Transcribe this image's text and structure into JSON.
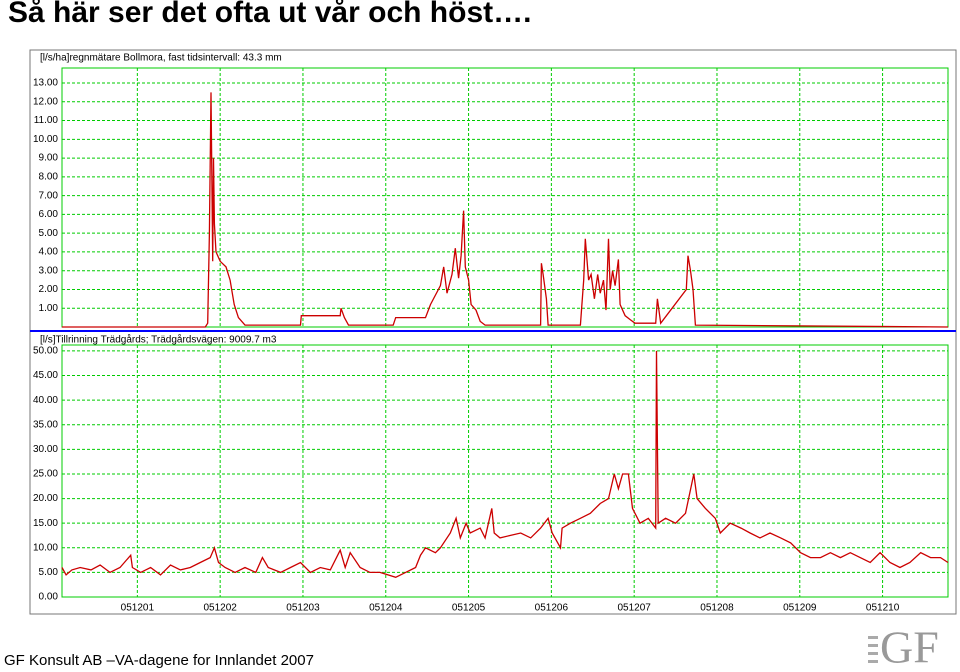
{
  "title": "Så här ser det ofta ut vår och höst….",
  "footer": "GF Konsult AB –VA-dagene for Innlandet 2007",
  "logo": "GF",
  "chart_data": [
    {
      "type": "line",
      "title": "[l/s/ha]regnmätare Bollmora, fast tidsintervall: 43.3 mm",
      "x": [
        -0.91,
        0.82,
        0.85,
        0.87,
        0.89,
        0.91,
        0.92,
        0.93,
        0.95,
        1.0,
        1.07,
        1.12,
        1.17,
        1.22,
        1.3,
        1.97,
        1.98,
        2.45,
        2.46,
        2.5,
        2.55,
        3.09,
        3.12,
        3.48,
        3.54,
        3.66,
        3.7,
        3.74,
        3.8,
        3.84,
        3.88,
        3.91,
        3.94,
        3.96,
        4.0,
        4.03,
        4.09,
        4.14,
        4.2,
        4.87,
        4.88,
        4.9,
        4.94,
        4.96,
        5.35,
        5.39,
        5.41,
        5.45,
        5.48,
        5.52,
        5.56,
        5.59,
        5.63,
        5.66,
        5.69,
        5.71,
        5.74,
        5.77,
        5.81,
        5.83,
        5.89,
        5.95,
        6.01,
        6.26,
        6.28,
        6.32,
        6.63,
        6.65,
        6.68,
        6.71,
        6.74,
        9.79
      ],
      "series": [
        {
          "color": "#cc0000",
          "values": [
            0,
            0,
            0.2,
            5,
            12.5,
            3.5,
            9,
            5.5,
            4,
            3.5,
            3.2,
            2.5,
            1.2,
            0.5,
            0.1,
            0.1,
            0.6,
            0.6,
            1.0,
            0.5,
            0.1,
            0.1,
            0.5,
            0.5,
            1.2,
            2.2,
            3.2,
            1.8,
            2.8,
            4.2,
            2.6,
            3.8,
            6.2,
            3.2,
            2.5,
            1.2,
            0.9,
            0.3,
            0.1,
            0.1,
            3.4,
            2.8,
            1.5,
            0.1,
            0.1,
            2.5,
            4.7,
            2.5,
            2.8,
            1.5,
            2.8,
            1.8,
            2.5,
            0.9,
            4.7,
            2.0,
            3.0,
            2.2,
            3.6,
            1.2,
            0.6,
            0.4,
            0.2,
            0.2,
            1.5,
            0.2,
            2.0,
            3.8,
            3.0,
            2.0,
            0.1,
            0
          ]
        }
      ],
      "xlim": [
        -0.91,
        9.79
      ],
      "ylim": [
        0,
        13.8
      ],
      "yticks": [
        {
          "value": 1,
          "label": "1.00"
        },
        {
          "value": 2,
          "label": "2.00"
        },
        {
          "value": 3,
          "label": "3.00"
        },
        {
          "value": 4,
          "label": "4.00"
        },
        {
          "value": 5,
          "label": "5.00"
        },
        {
          "value": 6,
          "label": "6.00"
        },
        {
          "value": 7,
          "label": "7.00"
        },
        {
          "value": 8,
          "label": "8.00"
        },
        {
          "value": 9,
          "label": "9.00"
        },
        {
          "value": 10,
          "label": "10.00"
        },
        {
          "value": 11,
          "label": "11.00"
        },
        {
          "value": 12,
          "label": "12.00"
        },
        {
          "value": 13,
          "label": "13.00"
        }
      ],
      "grid": true
    },
    {
      "type": "line",
      "title": "[l/s]Tillrinning Trädgårds; Trädgårdsvägen: 9009.7 m3",
      "x": [
        -0.91,
        -0.86,
        -0.79,
        -0.69,
        -0.56,
        -0.45,
        -0.33,
        -0.21,
        -0.08,
        -0.06,
        0.04,
        0.16,
        0.28,
        0.4,
        0.52,
        0.64,
        0.76,
        0.88,
        0.93,
        0.98,
        1.06,
        1.18,
        1.3,
        1.43,
        1.51,
        1.58,
        1.73,
        1.85,
        1.97,
        2.09,
        2.21,
        2.33,
        2.45,
        2.51,
        2.57,
        2.69,
        2.81,
        2.93,
        3.12,
        3.24,
        3.36,
        3.42,
        3.48,
        3.6,
        3.66,
        3.78,
        3.85,
        3.9,
        3.97,
        4.02,
        4.14,
        4.2,
        4.28,
        4.31,
        4.38,
        4.5,
        4.63,
        4.75,
        4.87,
        4.96,
        5.01,
        5.11,
        5.13,
        5.23,
        5.35,
        5.47,
        5.59,
        5.69,
        5.76,
        5.81,
        5.86,
        5.93,
        5.98,
        6.07,
        6.17,
        6.26,
        6.27,
        6.29,
        6.38,
        6.5,
        6.62,
        6.72,
        6.76,
        6.86,
        6.98,
        7.04,
        7.16,
        7.29,
        7.4,
        7.52,
        7.64,
        7.77,
        7.89,
        8.01,
        8.13,
        8.25,
        8.37,
        8.49,
        8.61,
        8.73,
        8.85,
        8.97,
        9.09,
        9.21,
        9.33,
        9.46,
        9.58,
        9.7,
        9.79
      ],
      "series": [
        {
          "color": "#cc0000",
          "values": [
            6,
            4.5,
            5.5,
            6,
            5.5,
            6.5,
            5,
            6,
            8.5,
            6,
            5,
            6,
            4.5,
            6.5,
            5.5,
            6,
            7,
            8,
            10,
            7,
            6,
            5,
            6,
            5,
            8,
            6,
            5,
            6,
            7,
            5,
            6,
            5.5,
            9.5,
            6,
            9,
            6,
            5,
            5,
            4,
            5,
            6,
            8.5,
            10,
            9,
            10,
            13,
            16,
            12,
            15,
            13,
            14,
            12,
            18,
            13,
            12,
            12.5,
            13,
            12,
            14,
            16,
            13,
            10,
            14,
            15,
            16,
            17,
            19,
            20,
            25,
            22,
            25,
            25,
            18,
            15,
            16,
            14,
            50,
            15,
            16,
            15,
            17,
            25,
            20,
            18,
            16,
            13,
            15,
            14,
            13,
            12,
            13,
            12,
            11,
            9,
            8,
            8,
            9,
            8,
            9,
            8,
            7,
            9,
            7,
            6,
            7,
            9,
            8,
            8,
            7
          ]
        }
      ],
      "xlim": [
        -0.91,
        9.79
      ],
      "ylim": [
        0,
        51.2
      ],
      "xticks": [
        {
          "value": 0,
          "label": "051201"
        },
        {
          "value": 1,
          "label": "051202"
        },
        {
          "value": 2,
          "label": "051203"
        },
        {
          "value": 3,
          "label": "051204"
        },
        {
          "value": 4,
          "label": "051205"
        },
        {
          "value": 5,
          "label": "051206"
        },
        {
          "value": 6,
          "label": "051207"
        },
        {
          "value": 7,
          "label": "051208"
        },
        {
          "value": 8,
          "label": "051209"
        },
        {
          "value": 9,
          "label": "051210"
        }
      ],
      "yticks": [
        {
          "value": 0,
          "label": "0.00"
        },
        {
          "value": 5,
          "label": "5.00"
        },
        {
          "value": 10,
          "label": "10.00"
        },
        {
          "value": 15,
          "label": "15.00"
        },
        {
          "value": 20,
          "label": "20.00"
        },
        {
          "value": 25,
          "label": "25.00"
        },
        {
          "value": 30,
          "label": "30.00"
        },
        {
          "value": 35,
          "label": "35.00"
        },
        {
          "value": 40,
          "label": "40.00"
        },
        {
          "value": 45,
          "label": "45.00"
        },
        {
          "value": 50,
          "label": "50.00"
        }
      ],
      "grid": true
    }
  ]
}
